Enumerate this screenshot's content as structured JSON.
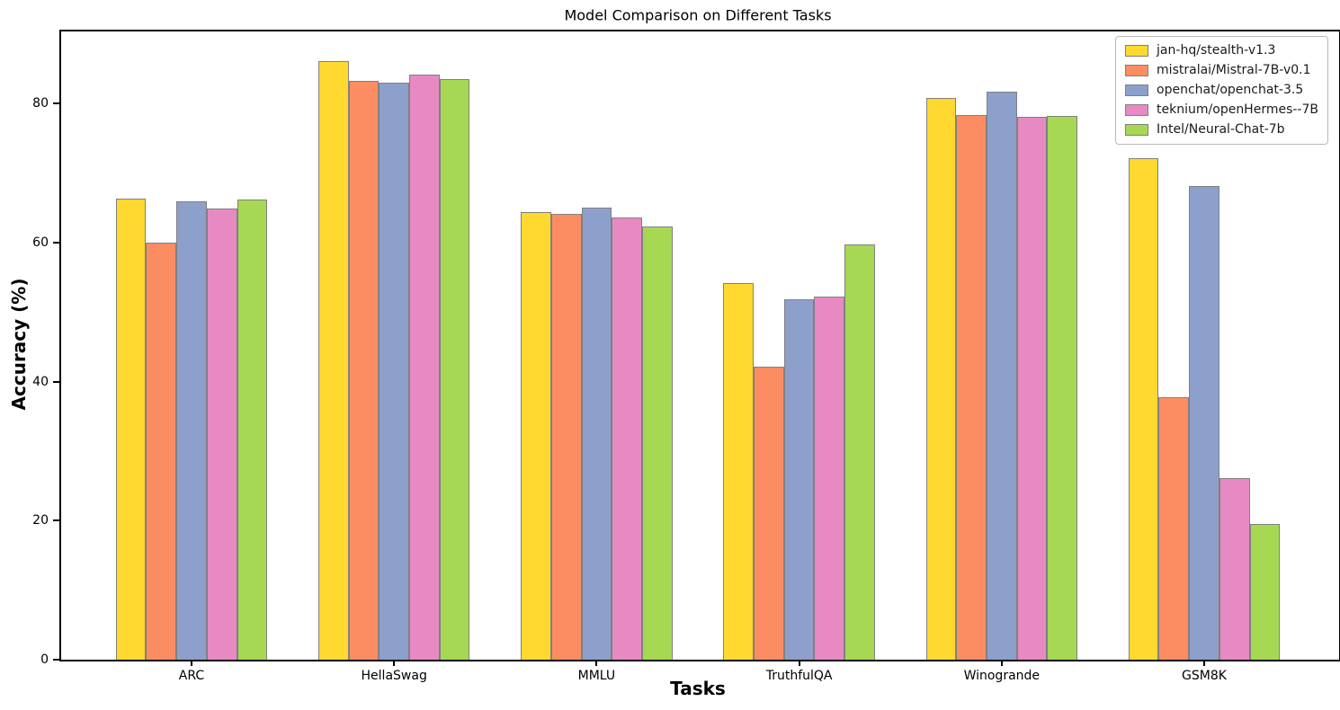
{
  "chart_data": {
    "type": "bar",
    "title": "Model Comparison on Different Tasks",
    "xlabel": "Tasks",
    "ylabel": "Accuracy (%)",
    "categories": [
      "ARC",
      "HellaSwag",
      "MMLU",
      "TruthfulQA",
      "Winogrande",
      "GSM8K"
    ],
    "series": [
      {
        "name": "jan-hq/stealth-v1.3",
        "color": "#FFD92F",
        "values": [
          66.4,
          86.1,
          64.4,
          54.2,
          80.8,
          72.2
        ]
      },
      {
        "name": "mistralai/Mistral-7B-v0.1",
        "color": "#FC8D62",
        "values": [
          60.0,
          83.3,
          64.2,
          42.2,
          78.4,
          37.8
        ]
      },
      {
        "name": "openchat/openchat-3.5",
        "color": "#8DA0CB",
        "values": [
          66.0,
          83.0,
          65.0,
          51.9,
          81.8,
          68.2
        ]
      },
      {
        "name": "teknium/openHermes--7B",
        "color": "#E78AC3",
        "values": [
          64.9,
          84.2,
          63.6,
          52.2,
          78.1,
          26.1
        ]
      },
      {
        "name": "Intel/Neural-Chat-7b",
        "color": "#A6D854",
        "values": [
          66.2,
          83.6,
          62.4,
          59.7,
          78.2,
          19.5
        ]
      }
    ],
    "yticks": [
      0,
      20,
      40,
      60,
      80
    ],
    "ylim": [
      0,
      90.4
    ],
    "bar_edge_color": "#808080",
    "axis_color": "#000000",
    "legend_position": "upper right",
    "grid": false
  }
}
